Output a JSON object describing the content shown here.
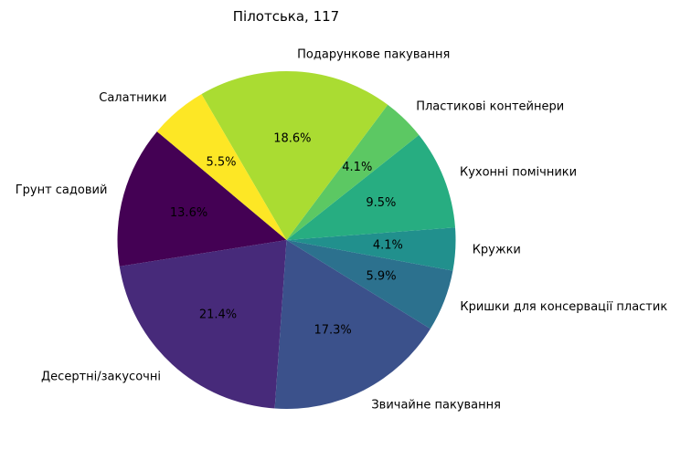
{
  "chart_data": {
    "type": "pie",
    "title": "Пілотська, 117",
    "slices": [
      {
        "label": "Грунт садовий",
        "value": 13.6,
        "pct_label": "13.6%",
        "color": "#440154"
      },
      {
        "label": "Десертні/закусочні",
        "value": 21.4,
        "pct_label": "21.4%",
        "color": "#472a7a"
      },
      {
        "label": "Звичайне пакування",
        "value": 17.3,
        "pct_label": "17.3%",
        "color": "#3b518b"
      },
      {
        "label": "Кришки для консервації пластик",
        "value": 5.9,
        "pct_label": "5.9%",
        "color": "#2c718e"
      },
      {
        "label": "Кружки",
        "value": 4.1,
        "pct_label": "4.1%",
        "color": "#21908d"
      },
      {
        "label": "Кухонні помічники",
        "value": 9.5,
        "pct_label": "9.5%",
        "color": "#27ad81"
      },
      {
        "label": "Пластикові контейнери",
        "value": 4.1,
        "pct_label": "4.1%",
        "color": "#5cc863"
      },
      {
        "label": "Подарункове пакування",
        "value": 18.6,
        "pct_label": "18.6%",
        "color": "#aadc32"
      },
      {
        "label": "Салатники",
        "value": 5.5,
        "pct_label": "5.5%",
        "color": "#fde725"
      }
    ],
    "start_angle_deg": 140,
    "direction": "counterclockwise"
  }
}
